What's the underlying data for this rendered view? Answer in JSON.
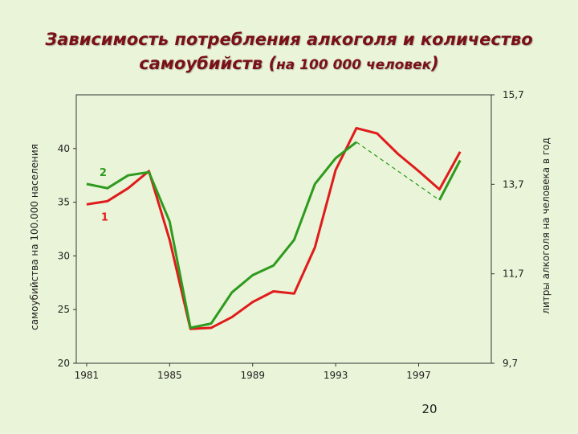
{
  "title": {
    "line1": "Зависимость потребления алкоголя и количество",
    "line2_main": "самоубийств (",
    "line2_small": "на 100 000 человек",
    "line2_end": ")"
  },
  "slide_number": "20",
  "chart_data": {
    "type": "line",
    "title": "Зависимость потребления алкоголя и количество самоубийств (на 100 000 человек)",
    "xlabel": "",
    "ylabel_left": "самоубийства на 100.000 населения",
    "ylabel_right": "литры алкоголя на человека в год",
    "x_ticks": [
      "1981",
      "1985",
      "1989",
      "1993",
      "1997"
    ],
    "xlim": [
      1980.5,
      2000.5
    ],
    "y_left_ticks": [
      "20",
      "25",
      "30",
      "35",
      "40"
    ],
    "y_left_lim": [
      20,
      45
    ],
    "y_right_ticks": [
      "9,7",
      "11,7",
      "13,7",
      "15,7"
    ],
    "y_right_lim": [
      9.7,
      15.7
    ],
    "grid": false,
    "series": [
      {
        "name": "1",
        "axis": "left",
        "color": "#e01b1b",
        "points": [
          [
            1981,
            34.8
          ],
          [
            1982,
            35.1
          ],
          [
            1983,
            36.3
          ],
          [
            1984,
            37.9
          ],
          [
            1985,
            31.5
          ],
          [
            1986,
            23.2
          ],
          [
            1987,
            23.3
          ],
          [
            1988,
            24.3
          ],
          [
            1989,
            25.7
          ],
          [
            1990,
            26.7
          ],
          [
            1991,
            26.5
          ],
          [
            1992,
            30.8
          ],
          [
            1993,
            38.0
          ],
          [
            1994,
            41.9
          ],
          [
            1995,
            41.4
          ],
          [
            1996,
            39.5
          ],
          [
            1997,
            37.9
          ],
          [
            1998,
            36.2
          ],
          [
            1999,
            39.7
          ]
        ]
      },
      {
        "name": "2",
        "axis": "left",
        "color": "#2e9a1e",
        "points": [
          [
            1981,
            36.7
          ],
          [
            1982,
            36.3
          ],
          [
            1983,
            37.5
          ],
          [
            1984,
            37.8
          ],
          [
            1985,
            33.2
          ],
          [
            1986,
            23.3
          ],
          [
            1987,
            23.7
          ],
          [
            1988,
            26.6
          ],
          [
            1989,
            28.2
          ],
          [
            1990,
            29.1
          ],
          [
            1991,
            31.5
          ],
          [
            1992,
            36.7
          ],
          [
            1993,
            39.1
          ],
          [
            1994,
            40.6
          ]
        ],
        "dashed_points": [
          [
            1994,
            40.6
          ],
          [
            1998,
            35.2
          ]
        ],
        "tail_points": [
          [
            1998,
            35.2
          ],
          [
            1999,
            38.9
          ]
        ]
      }
    ]
  }
}
